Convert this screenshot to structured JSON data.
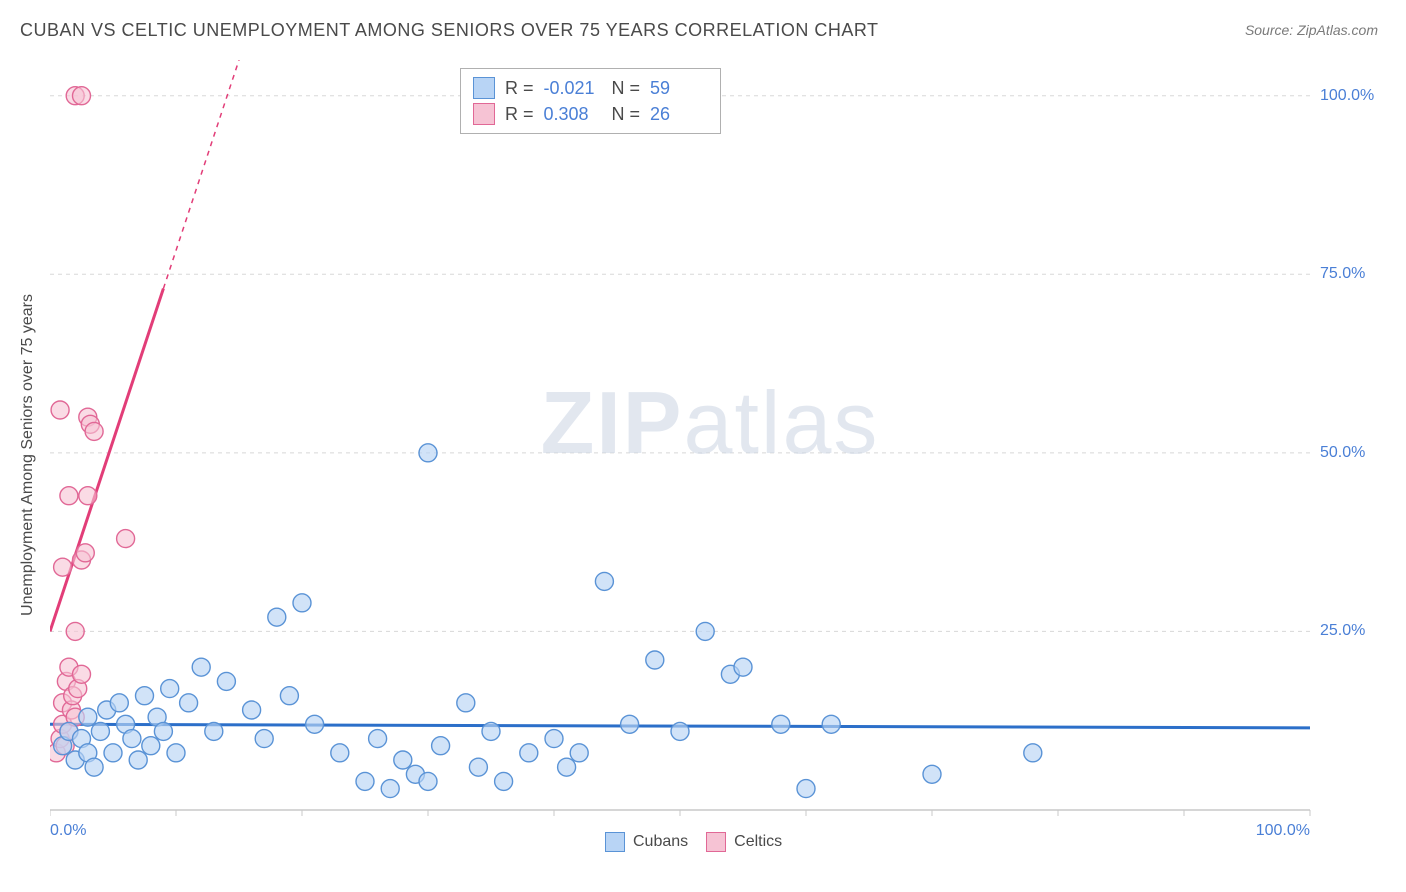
{
  "title": "CUBAN VS CELTIC UNEMPLOYMENT AMONG SENIORS OVER 75 YEARS CORRELATION CHART",
  "source_label": "Source: ",
  "source_value": "ZipAtlas.com",
  "watermark_zip": "ZIP",
  "watermark_atlas": "atlas",
  "ylabel": "Unemployment Among Seniors over 75 years",
  "chart": {
    "type": "scatter",
    "background_color": "#ffffff",
    "grid_color": "#d8d8d8",
    "axis_color": "#c8c8c8",
    "xlim": [
      0,
      100
    ],
    "ylim": [
      0,
      105
    ],
    "x_ticks": [
      0,
      50,
      100
    ],
    "x_tick_labels": [
      "0.0%",
      "",
      "100.0%"
    ],
    "y_ticks": [
      25,
      50,
      75,
      100
    ],
    "y_tick_labels": [
      "25.0%",
      "50.0%",
      "75.0%",
      "100.0%"
    ],
    "x_minor_ticks": [
      10,
      20,
      30,
      40,
      60,
      70,
      80,
      90
    ],
    "marker_radius": 9,
    "marker_stroke_width": 1.4,
    "trend_line_width": 3,
    "tick_label_color": "#4a7fd6",
    "series": {
      "cubans": {
        "label": "Cubans",
        "fill": "#b8d4f5",
        "stroke": "#5a93d6",
        "fill_opacity": 0.65,
        "trend_color": "#2c6fc9",
        "trend": {
          "x1": 0,
          "y1": 12.0,
          "x2": 100,
          "y2": 11.5
        },
        "R": "-0.021",
        "N": "59",
        "points": [
          [
            1,
            9
          ],
          [
            1.5,
            11
          ],
          [
            2,
            7
          ],
          [
            2.5,
            10
          ],
          [
            3,
            8
          ],
          [
            3,
            13
          ],
          [
            3.5,
            6
          ],
          [
            4,
            11
          ],
          [
            4.5,
            14
          ],
          [
            5,
            8
          ],
          [
            5.5,
            15
          ],
          [
            6,
            12
          ],
          [
            6.5,
            10
          ],
          [
            7,
            7
          ],
          [
            7.5,
            16
          ],
          [
            8,
            9
          ],
          [
            8.5,
            13
          ],
          [
            9,
            11
          ],
          [
            9.5,
            17
          ],
          [
            10,
            8
          ],
          [
            11,
            15
          ],
          [
            12,
            20
          ],
          [
            13,
            11
          ],
          [
            14,
            18
          ],
          [
            16,
            14
          ],
          [
            17,
            10
          ],
          [
            18,
            27
          ],
          [
            19,
            16
          ],
          [
            20,
            29
          ],
          [
            21,
            12
          ],
          [
            23,
            8
          ],
          [
            25,
            4
          ],
          [
            26,
            10
          ],
          [
            27,
            3
          ],
          [
            28,
            7
          ],
          [
            29,
            5
          ],
          [
            30,
            50
          ],
          [
            30,
            4
          ],
          [
            31,
            9
          ],
          [
            33,
            15
          ],
          [
            34,
            6
          ],
          [
            35,
            11
          ],
          [
            36,
            4
          ],
          [
            38,
            8
          ],
          [
            40,
            10
          ],
          [
            41,
            6
          ],
          [
            42,
            8
          ],
          [
            44,
            32
          ],
          [
            46,
            12
          ],
          [
            48,
            21
          ],
          [
            50,
            11
          ],
          [
            52,
            25
          ],
          [
            54,
            19
          ],
          [
            55,
            20
          ],
          [
            58,
            12
          ],
          [
            60,
            3
          ],
          [
            62,
            12
          ],
          [
            70,
            5
          ],
          [
            78,
            8
          ]
        ]
      },
      "celtics": {
        "label": "Celtics",
        "fill": "#f6c3d4",
        "stroke": "#e16896",
        "fill_opacity": 0.6,
        "trend_color": "#e23d78",
        "trend": {
          "x1": 0,
          "y1": 25,
          "x2": 15,
          "y2": 105
        },
        "trend_dash_from_x": 9,
        "R": "0.308",
        "N": "26",
        "points": [
          [
            0.5,
            8
          ],
          [
            0.8,
            10
          ],
          [
            1,
            12
          ],
          [
            1,
            15
          ],
          [
            1.2,
            9
          ],
          [
            1.3,
            18
          ],
          [
            1.5,
            11
          ],
          [
            1.5,
            20
          ],
          [
            1.7,
            14
          ],
          [
            1.8,
            16
          ],
          [
            2,
            13
          ],
          [
            2,
            25
          ],
          [
            2.2,
            17
          ],
          [
            2.5,
            19
          ],
          [
            2.5,
            35
          ],
          [
            2.8,
            36
          ],
          [
            3,
            44
          ],
          [
            3,
            55
          ],
          [
            3.2,
            54
          ],
          [
            3.5,
            53
          ],
          [
            1,
            34
          ],
          [
            1.5,
            44
          ],
          [
            0.8,
            56
          ],
          [
            2,
            100
          ],
          [
            2.5,
            100
          ],
          [
            6,
            38
          ]
        ]
      }
    }
  },
  "stats_legend": {
    "R_label": "R =",
    "N_label": "N ="
  }
}
